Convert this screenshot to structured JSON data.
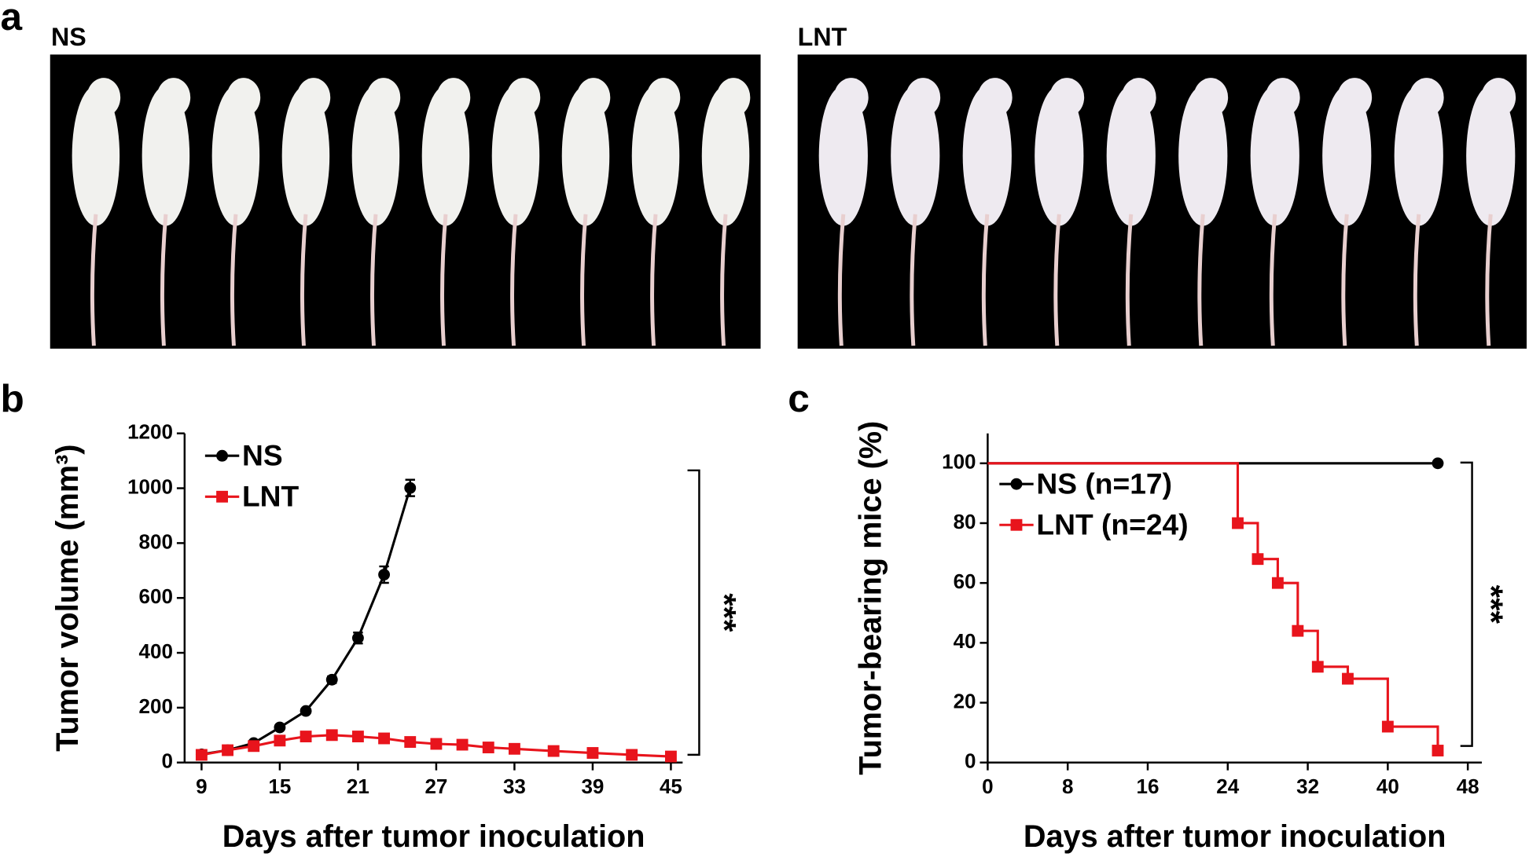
{
  "panel_labels": [
    "a",
    "b",
    "c"
  ],
  "photos": [
    {
      "label": "NS"
    },
    {
      "label": "LNT"
    }
  ],
  "chart_data": [
    {
      "type": "line",
      "xlabel": "Days after tumor inoculation",
      "ylabel": "Tumor volume (mm³)",
      "xlim": [
        7.7,
        45.9
      ],
      "xticks": [
        9,
        15,
        21,
        27,
        33,
        39,
        45
      ],
      "ylim": [
        0,
        1200
      ],
      "yticks": [
        0,
        200,
        400,
        600,
        800,
        1000,
        1200
      ],
      "legend": "upper left",
      "annotation": "***",
      "series": [
        {
          "name": "NS",
          "color": "#000000",
          "marker": "circle",
          "x": [
            9,
            11,
            13,
            15,
            17,
            19,
            21,
            23,
            25
          ],
          "values": [
            30,
            45,
            71,
            128,
            188,
            302,
            454,
            685,
            1001
          ],
          "errors": [
            3,
            4,
            5,
            6,
            8,
            12,
            20,
            30,
            30
          ]
        },
        {
          "name": "LNT",
          "color": "#e8141c",
          "marker": "square",
          "x": [
            9,
            11,
            13,
            15,
            17,
            19,
            21,
            23,
            25,
            27,
            29,
            31,
            33,
            36,
            39,
            42,
            45
          ],
          "values": [
            28,
            45,
            60,
            80,
            95,
            100,
            95,
            88,
            75,
            68,
            65,
            55,
            50,
            42,
            35,
            28,
            22
          ]
        }
      ]
    },
    {
      "type": "step",
      "xlabel": "Days after tumor inoculation",
      "ylabel": "Tumor-bearing mice (%)",
      "xlim": [
        0,
        49.4
      ],
      "xticks": [
        0,
        8,
        16,
        24,
        32,
        40,
        48
      ],
      "ylim": [
        0,
        110
      ],
      "yticks": [
        0,
        20,
        40,
        60,
        80,
        100
      ],
      "legend": "upper left",
      "annotation": "***",
      "series": [
        {
          "name": "NS (n=17)",
          "color": "#000000",
          "marker": "circle",
          "x": [
            0,
            45
          ],
          "values": [
            100,
            100
          ]
        },
        {
          "name": "LNT (n=24)",
          "color": "#e8141c",
          "marker": "square",
          "x": [
            0,
            25,
            27,
            29,
            31,
            33,
            36,
            40,
            45
          ],
          "values": [
            100,
            80,
            68,
            60,
            44,
            32,
            28,
            12,
            4
          ]
        }
      ]
    }
  ]
}
